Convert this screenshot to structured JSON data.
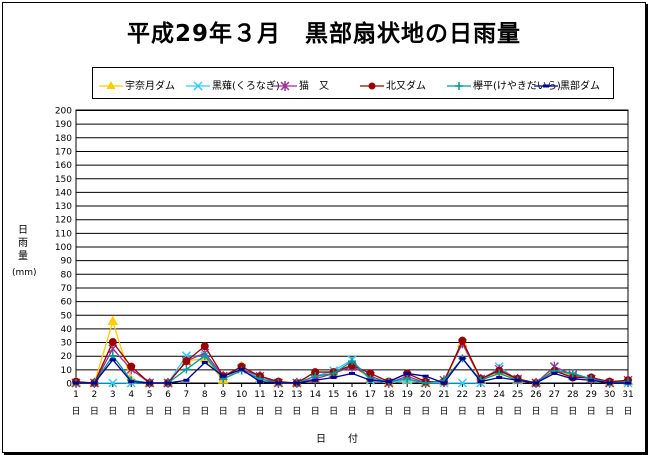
{
  "chart_data": {
    "type": "line",
    "title": "平成29年３月　黒部扇状地の日雨量",
    "ylabel": "日雨量",
    "yunit": "(mm)",
    "xlabel": "日　付",
    "x_suffix": "日",
    "ylim": [
      0,
      200
    ],
    "ystep": 10,
    "grid": true,
    "legend_position": "top",
    "categories": [
      1,
      2,
      3,
      4,
      5,
      6,
      7,
      8,
      9,
      10,
      11,
      12,
      13,
      14,
      15,
      16,
      17,
      18,
      19,
      20,
      21,
      22,
      23,
      24,
      25,
      26,
      27,
      28,
      29,
      30,
      31
    ],
    "series": [
      {
        "name": "宇奈月ダム",
        "color": "#FFCC00",
        "marker": "triangle",
        "values": [
          0,
          0,
          45,
          2,
          0,
          0,
          16,
          18,
          2,
          12,
          3,
          0,
          0,
          3,
          7,
          13,
          3,
          0,
          2,
          0,
          1,
          29,
          2,
          8,
          2,
          0,
          10,
          5,
          3,
          0,
          1
        ]
      },
      {
        "name": "黒薙(くろなぎ)",
        "color": "#33CCFF",
        "marker": "x",
        "values": [
          0,
          0,
          0,
          0,
          0,
          0,
          20,
          20,
          5,
          11,
          3,
          0,
          0,
          5,
          9,
          17,
          2,
          0,
          2,
          0,
          0,
          0,
          0,
          12,
          2,
          0,
          12,
          5,
          3,
          0,
          0
        ]
      },
      {
        "name": "猫　又",
        "color": "#993399",
        "marker": "star",
        "values": [
          0,
          0,
          25,
          10,
          0,
          0,
          16,
          22,
          5,
          10,
          5,
          0,
          0,
          3,
          7,
          12,
          5,
          0,
          5,
          0,
          2,
          29,
          3,
          10,
          3,
          0,
          12,
          6,
          3,
          0,
          2
        ]
      },
      {
        "name": "北又ダム",
        "color": "#990000",
        "marker": "circle",
        "values": [
          1,
          0,
          30,
          12,
          0,
          0,
          16,
          27,
          5,
          12,
          5,
          1,
          0,
          8,
          8,
          13,
          7,
          1,
          7,
          1,
          1,
          31,
          3,
          9,
          3,
          0,
          9,
          4,
          4,
          1,
          2
        ]
      },
      {
        "name": "欅平(けやきだいら)",
        "color": "#009999",
        "marker": "plus",
        "values": [
          0,
          0,
          20,
          2,
          0,
          0,
          10,
          20,
          3,
          9,
          3,
          0,
          0,
          5,
          7,
          16,
          3,
          1,
          3,
          0,
          2,
          18,
          2,
          7,
          2,
          0,
          9,
          7,
          3,
          0,
          1
        ]
      },
      {
        "name": "黒部ダム",
        "color": "#000099",
        "marker": "dash",
        "values": [
          0,
          0,
          17,
          1,
          0,
          0,
          2,
          15,
          5,
          10,
          1,
          0,
          0,
          2,
          4,
          7,
          2,
          1,
          7,
          5,
          0,
          18,
          1,
          4,
          2,
          0,
          7,
          3,
          2,
          0,
          0
        ]
      }
    ]
  }
}
